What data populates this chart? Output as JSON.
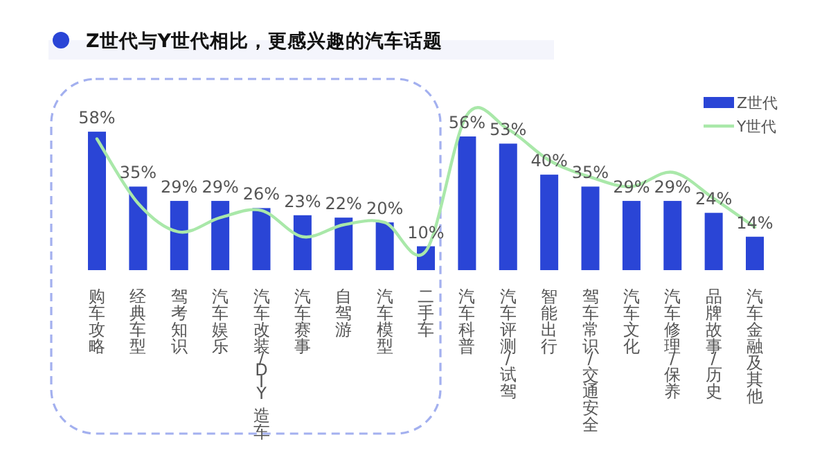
{
  "chart_data": {
    "type": "bar",
    "title": "Z世代与Y世代相比，更感兴趣的汽车话题",
    "categories": [
      "购车攻略",
      "经典车型",
      "驾考知识",
      "汽车娱乐",
      "汽车改装/DIY 造车",
      "汽车赛事",
      "自驾游",
      "汽车模型",
      "二手车",
      "汽车科普",
      "汽车评测/试驾",
      "智能出行",
      "驾车常识/交通安全",
      "汽车文化",
      "汽车修理/保养",
      "品牌故事/历史",
      "汽车金融及其他"
    ],
    "series": [
      {
        "name": "Z世代",
        "color": "#2a45d6",
        "values": [
          58,
          35,
          29,
          29,
          26,
          23,
          22,
          20,
          10,
          56,
          53,
          40,
          35,
          29,
          29,
          24,
          14
        ],
        "value_labels": [
          "58%",
          "35%",
          "29%",
          "29%",
          "26%",
          "23%",
          "22%",
          "20%",
          "10%",
          "56%",
          "53%",
          "40%",
          "35%",
          "29%",
          "29%",
          "24%",
          "14%"
        ]
      },
      {
        "name": "Y世代",
        "type": "line",
        "color": "#a9e8a9",
        "values": [
          55,
          28,
          16,
          22,
          25,
          14,
          19,
          20,
          8,
          65,
          59,
          46,
          39,
          35,
          41,
          30,
          18
        ]
      }
    ],
    "legend": "top right",
    "grid": false
  }
}
